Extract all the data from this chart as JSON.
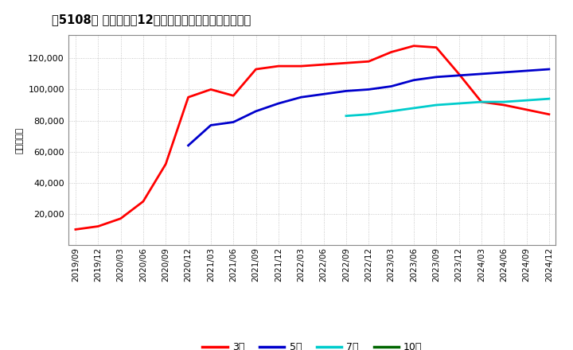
{
  "title": "［5108］ 当期純利益12か月移動合計の標準偏差の推移",
  "ylabel": "（百万円）",
  "ylim": [
    0,
    135000
  ],
  "yticks": [
    20000,
    40000,
    60000,
    80000,
    100000,
    120000
  ],
  "background_color": "#ffffff",
  "grid_color": "#aaaaaa",
  "series": {
    "3年": {
      "color": "#ff0000",
      "dates": [
        "2019/09",
        "2019/12",
        "2020/03",
        "2020/06",
        "2020/09",
        "2020/12",
        "2021/03",
        "2021/06",
        "2021/09",
        "2021/12",
        "2022/03",
        "2022/06",
        "2022/09",
        "2022/12",
        "2023/03",
        "2023/06",
        "2023/09",
        "2023/12",
        "2024/03",
        "2024/06",
        "2024/09",
        "2024/12"
      ],
      "values": [
        10000,
        12000,
        17000,
        28000,
        52000,
        95000,
        100000,
        96000,
        113000,
        115000,
        115000,
        116000,
        117000,
        118000,
        124000,
        128000,
        127000,
        110000,
        92000,
        90000,
        87000,
        84000
      ]
    },
    "5年": {
      "color": "#0000cc",
      "dates": [
        "2020/12",
        "2021/03",
        "2021/06",
        "2021/09",
        "2021/12",
        "2022/03",
        "2022/06",
        "2022/09",
        "2022/12",
        "2023/03",
        "2023/06",
        "2023/09",
        "2023/12",
        "2024/03",
        "2024/06",
        "2024/09",
        "2024/12"
      ],
      "values": [
        64000,
        77000,
        79000,
        86000,
        91000,
        95000,
        97000,
        99000,
        100000,
        102000,
        106000,
        108000,
        109000,
        110000,
        111000,
        112000,
        113000
      ]
    },
    "7年": {
      "color": "#00cccc",
      "dates": [
        "2022/09",
        "2022/12",
        "2023/03",
        "2023/06",
        "2023/09",
        "2023/12",
        "2024/03",
        "2024/06",
        "2024/09",
        "2024/12"
      ],
      "values": [
        83000,
        84000,
        86000,
        88000,
        90000,
        91000,
        92000,
        92000,
        93000,
        94000
      ]
    },
    "10年": {
      "color": "#006600",
      "dates": [],
      "values": []
    }
  },
  "xticks": [
    "2019/09",
    "2019/12",
    "2020/03",
    "2020/06",
    "2020/09",
    "2020/12",
    "2021/03",
    "2021/06",
    "2021/09",
    "2021/12",
    "2022/03",
    "2022/06",
    "2022/09",
    "2022/12",
    "2023/03",
    "2023/06",
    "2023/09",
    "2023/12",
    "2024/03",
    "2024/06",
    "2024/09",
    "2024/12"
  ],
  "legend_labels": [
    "3年",
    "5年",
    "7年",
    "10年"
  ],
  "legend_colors": [
    "#ff0000",
    "#0000cc",
    "#00cccc",
    "#006600"
  ]
}
